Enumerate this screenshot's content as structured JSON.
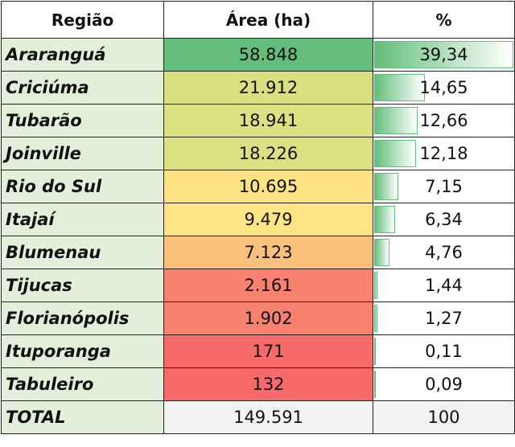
{
  "table": {
    "header": [
      "Região",
      "Área (ha)",
      "%"
    ],
    "rows": [
      [
        "Araranguá",
        "58.848",
        "39,34"
      ],
      [
        "Criciúma",
        "21.912",
        "14,65"
      ],
      [
        "Tubarão",
        "18.941",
        "12,66"
      ],
      [
        "Joinville",
        "18.226",
        "12,18"
      ],
      [
        "Rio do Sul",
        "10.695",
        "7,15"
      ],
      [
        "Itajaí",
        "9.479",
        "6,34"
      ],
      [
        "Blumenau",
        "7.123",
        "4,76"
      ],
      [
        "Tijucas",
        "2.161",
        "1,44"
      ],
      [
        "Florianópolis",
        "1.902",
        "1,27"
      ],
      [
        "Ituporanga",
        "171",
        "0,11"
      ],
      [
        "Tabuleiro",
        "132",
        "0,09"
      ]
    ],
    "total": [
      "TOTAL",
      "149.591",
      "100"
    ],
    "area_colors": [
      "#63be7b",
      "#dadf80",
      "#dde081",
      "#dde081",
      "#fde383",
      "#fee483",
      "#fbc07c",
      "#f8816f",
      "#f8806f",
      "#f86b6b",
      "#f8696b"
    ],
    "bar_color": "#63be7b"
  }
}
